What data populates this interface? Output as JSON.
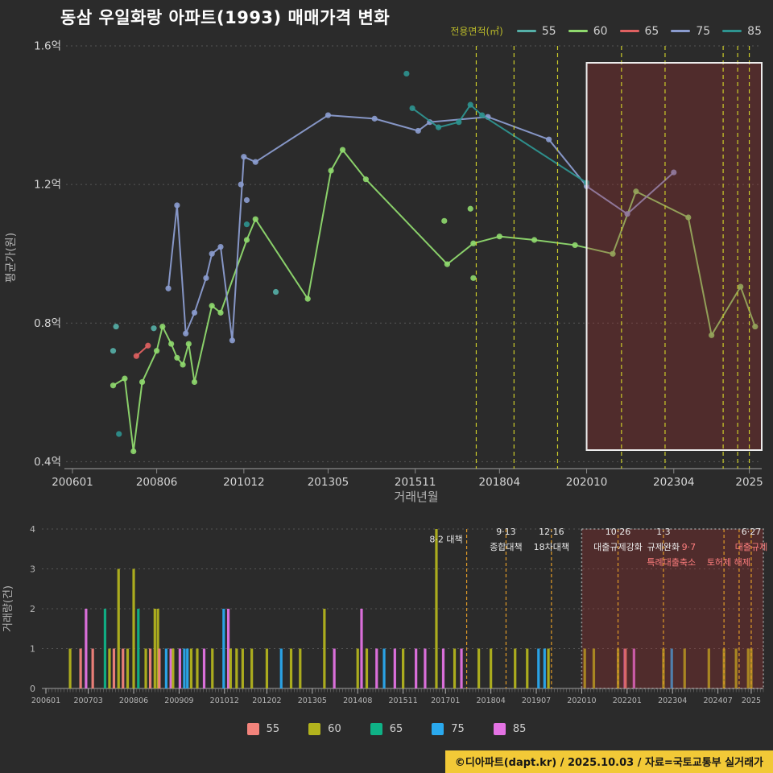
{
  "title": "동삼 우일화랑 아파트(1993) 매매가격 변화",
  "footer": "©디아파트(dapt.kr) / 2025.10.03 / 자료=국토교통부 실거래가",
  "top_legend": {
    "title": "전용면적(㎡)",
    "items": [
      {
        "label": "55",
        "color": "#55b0a8"
      },
      {
        "label": "60",
        "color": "#8fd96e"
      },
      {
        "label": "65",
        "color": "#e06161"
      },
      {
        "label": "75",
        "color": "#8b9ccf"
      },
      {
        "label": "85",
        "color": "#2e9490"
      }
    ]
  },
  "bottom_legend": {
    "items": [
      {
        "label": "55",
        "color": "#f2837b"
      },
      {
        "label": "60",
        "color": "#b2b31d"
      },
      {
        "label": "65",
        "color": "#0fb286"
      },
      {
        "label": "75",
        "color": "#2aa9ee"
      },
      {
        "label": "85",
        "color": "#e473e4"
      }
    ]
  },
  "chart_data": [
    {
      "name": "price",
      "type": "line",
      "xlabel": "거래년월",
      "ylabel": "평균가(원)",
      "x_unit": "months-since-2006-01",
      "xlim_months": [
        0,
        237
      ],
      "ylim": [
        0.38,
        1.6
      ],
      "yticks": [
        {
          "v": 0.4,
          "label": "0.4억"
        },
        {
          "v": 0.8,
          "label": "0.8억"
        },
        {
          "v": 1.2,
          "label": "1.2억"
        },
        {
          "v": 1.6,
          "label": "1.6억"
        }
      ],
      "xticks": [
        {
          "date": "2006-01",
          "label": "200601"
        },
        {
          "date": "2008-06",
          "label": "200806"
        },
        {
          "date": "2010-12",
          "label": "201012"
        },
        {
          "date": "2013-05",
          "label": "201305"
        },
        {
          "date": "2015-11",
          "label": "201511"
        },
        {
          "date": "2018-04",
          "label": "201804"
        },
        {
          "date": "2020-10",
          "label": "202010"
        },
        {
          "date": "2023-04",
          "label": "202304"
        },
        {
          "date": "2025-06",
          "label": "2025"
        }
      ],
      "series": [
        {
          "name": "55",
          "color": "#55b0a8",
          "points": [],
          "scatter": [
            [
              "2007-03",
              0.72
            ],
            [
              "2007-04",
              0.79
            ],
            [
              "2008-05",
              0.785
            ],
            [
              "2011-11",
              0.89
            ]
          ]
        },
        {
          "name": "60",
          "color": "#8fd96e",
          "points": [
            [
              "2007-03",
              0.62
            ],
            [
              "2007-07",
              0.64
            ],
            [
              "2007-10",
              0.43
            ],
            [
              "2008-01",
              0.63
            ],
            [
              "2008-06",
              0.72
            ],
            [
              "2008-08",
              0.79
            ],
            [
              "2008-11",
              0.74
            ],
            [
              "2009-01",
              0.7
            ],
            [
              "2009-03",
              0.68
            ],
            [
              "2009-05",
              0.74
            ],
            [
              "2009-07",
              0.63
            ],
            [
              "2010-01",
              0.85
            ],
            [
              "2010-04",
              0.83
            ],
            [
              "2011-01",
              1.04
            ],
            [
              "2011-04",
              1.1
            ],
            [
              "2012-10",
              0.87
            ],
            [
              "2013-06",
              1.24
            ],
            [
              "2013-10",
              1.3
            ],
            [
              "2014-06",
              1.215
            ],
            [
              "2016-10",
              0.97
            ],
            [
              "2017-07",
              1.03
            ],
            [
              "2018-04",
              1.05
            ],
            [
              "2019-04",
              1.04
            ],
            [
              "2020-06",
              1.025
            ],
            [
              "2021-07",
              1.0
            ],
            [
              "2022-03",
              1.18
            ],
            [
              "2023-09",
              1.105
            ],
            [
              "2024-05",
              0.765
            ],
            [
              "2025-03",
              0.905
            ],
            [
              "2025-08",
              0.79
            ]
          ],
          "scatter": [
            [
              "2016-09",
              1.095
            ],
            [
              "2017-06",
              1.13
            ],
            [
              "2017-07",
              0.93
            ]
          ]
        },
        {
          "name": "65",
          "color": "#e06161",
          "points": [
            [
              "2007-11",
              0.705
            ],
            [
              "2008-03",
              0.735
            ]
          ],
          "scatter": []
        },
        {
          "name": "75",
          "color": "#8b9ccf",
          "points": [
            [
              "2008-10",
              0.9
            ],
            [
              "2009-01",
              1.14
            ],
            [
              "2009-04",
              0.77
            ],
            [
              "2009-07",
              0.83
            ],
            [
              "2009-11",
              0.93
            ],
            [
              "2010-01",
              1.0
            ],
            [
              "2010-04",
              1.02
            ],
            [
              "2010-08",
              0.75
            ],
            [
              "2010-12",
              1.28
            ],
            [
              "2011-04",
              1.265
            ],
            [
              "2013-05",
              1.4
            ],
            [
              "2014-09",
              1.39
            ],
            [
              "2015-12",
              1.355
            ],
            [
              "2016-04",
              1.38
            ],
            [
              "2017-12",
              1.395
            ],
            [
              "2019-09",
              1.33
            ],
            [
              "2020-10",
              1.195
            ],
            [
              "2021-12",
              1.115
            ],
            [
              "2023-04",
              1.235
            ]
          ],
          "scatter": [
            [
              "2010-11",
              1.2
            ],
            [
              "2011-01",
              1.155
            ]
          ]
        },
        {
          "name": "85",
          "color": "#2e9490",
          "points": [
            [
              "2015-10",
              1.42
            ],
            [
              "2016-07",
              1.365
            ],
            [
              "2017-02",
              1.38
            ],
            [
              "2017-06",
              1.43
            ],
            [
              "2017-10",
              1.4
            ],
            [
              "2020-10",
              1.205
            ]
          ],
          "scatter": [
            [
              "2007-05",
              0.48
            ],
            [
              "2015-08",
              1.52
            ],
            [
              "2011-01",
              1.085
            ]
          ]
        }
      ],
      "event_dates": [
        "2017-08",
        "2018-09",
        "2019-12",
        "2021-10",
        "2023-01",
        "2024-09",
        "2025-02",
        "2025-06"
      ],
      "highlight_from": "2020-10"
    },
    {
      "name": "volume",
      "type": "bar",
      "ylabel": "거래량(건)",
      "ylim": [
        0,
        4
      ],
      "yticks": [
        0,
        1,
        2,
        3,
        4
      ],
      "xticks": [
        {
          "date": "2006-01",
          "label": "200601"
        },
        {
          "date": "2007-03",
          "label": "200703"
        },
        {
          "date": "2008-06",
          "label": "200806"
        },
        {
          "date": "2009-09",
          "label": "200909"
        },
        {
          "date": "2010-12",
          "label": "201012"
        },
        {
          "date": "2012-02",
          "label": "201202"
        },
        {
          "date": "2013-05",
          "label": "201305"
        },
        {
          "date": "2014-08",
          "label": "201408"
        },
        {
          "date": "2015-11",
          "label": "201511"
        },
        {
          "date": "2017-01",
          "label": "201701"
        },
        {
          "date": "2018-04",
          "label": "201804"
        },
        {
          "date": "2019-07",
          "label": "201907"
        },
        {
          "date": "2020-10",
          "label": "202010"
        },
        {
          "date": "2022-01",
          "label": "202201"
        },
        {
          "date": "2023-04",
          "label": "202304"
        },
        {
          "date": "2024-07",
          "label": "202407"
        },
        {
          "date": "2025-06",
          "label": "2025"
        }
      ],
      "bars": [
        [
          "2006-09",
          "60",
          1
        ],
        [
          "2007-01",
          "55",
          1
        ],
        [
          "2007-02",
          "85",
          2
        ],
        [
          "2007-05",
          "55",
          1
        ],
        [
          "2007-08",
          "65",
          2
        ],
        [
          "2007-10",
          "60",
          1
        ],
        [
          "2007-12",
          "55",
          1
        ],
        [
          "2008-01",
          "60",
          3
        ],
        [
          "2008-03",
          "55",
          1
        ],
        [
          "2008-04",
          "60",
          1
        ],
        [
          "2008-06",
          "60",
          3
        ],
        [
          "2008-07",
          "65",
          2
        ],
        [
          "2008-10",
          "60",
          1
        ],
        [
          "2008-12",
          "55",
          1
        ],
        [
          "2009-01",
          "60",
          2
        ],
        [
          "2009-02",
          "60",
          2
        ],
        [
          "2009-03",
          "55",
          1
        ],
        [
          "2009-05",
          "75",
          1
        ],
        [
          "2009-06",
          "85",
          1
        ],
        [
          "2009-07",
          "60",
          1
        ],
        [
          "2009-09",
          "85",
          1
        ],
        [
          "2009-11",
          "75",
          1
        ],
        [
          "2009-12",
          "75",
          1
        ],
        [
          "2010-01",
          "60",
          1
        ],
        [
          "2010-03",
          "60",
          1
        ],
        [
          "2010-05",
          "85",
          1
        ],
        [
          "2010-08",
          "60",
          1
        ],
        [
          "2010-12",
          "75",
          2
        ],
        [
          "2011-01",
          "85",
          2
        ],
        [
          "2011-02",
          "60",
          1
        ],
        [
          "2011-04",
          "60",
          1
        ],
        [
          "2011-06",
          "60",
          1
        ],
        [
          "2011-09",
          "60",
          1
        ],
        [
          "2012-02",
          "60",
          1
        ],
        [
          "2012-07",
          "75",
          1
        ],
        [
          "2012-10",
          "60",
          1
        ],
        [
          "2013-01",
          "60",
          1
        ],
        [
          "2013-09",
          "60",
          2
        ],
        [
          "2013-12",
          "85",
          1
        ],
        [
          "2014-09",
          "85",
          2
        ],
        [
          "2014-08",
          "60",
          1
        ],
        [
          "2014-11",
          "60",
          1
        ],
        [
          "2015-02",
          "85",
          1
        ],
        [
          "2015-05",
          "75",
          1
        ],
        [
          "2015-08",
          "85",
          1
        ],
        [
          "2015-11",
          "60",
          1
        ],
        [
          "2016-03",
          "85",
          1
        ],
        [
          "2016-06",
          "85",
          1
        ],
        [
          "2016-10",
          "60",
          4
        ],
        [
          "2016-12",
          "85",
          1
        ],
        [
          "2017-04",
          "60",
          1
        ],
        [
          "2017-06",
          "85",
          1
        ],
        [
          "2017-12",
          "60",
          1
        ],
        [
          "2018-04",
          "60",
          1
        ],
        [
          "2018-12",
          "60",
          1
        ],
        [
          "2019-04",
          "60",
          1
        ],
        [
          "2019-08",
          "75",
          1
        ],
        [
          "2019-10",
          "75",
          1
        ],
        [
          "2019-11",
          "60",
          1
        ],
        [
          "2020-11",
          "60",
          1
        ],
        [
          "2021-02",
          "60",
          1
        ],
        [
          "2021-10",
          "60",
          1
        ],
        [
          "2021-12",
          "85",
          1
        ],
        [
          "2022-01",
          "55",
          1
        ],
        [
          "2022-03",
          "85",
          1
        ],
        [
          "2023-01",
          "60",
          1
        ],
        [
          "2023-04",
          "75",
          1
        ],
        [
          "2023-08",
          "60",
          1
        ],
        [
          "2024-04",
          "60",
          1
        ],
        [
          "2024-09",
          "60",
          1
        ],
        [
          "2025-01",
          "60",
          1
        ],
        [
          "2025-05",
          "60",
          1
        ],
        [
          "2025-06",
          "60",
          1
        ]
      ],
      "events": [
        {
          "date": "2017-08",
          "rows": [
            {
              "text": "8·2 대책",
              "color": "#eaeaea"
            }
          ],
          "anchor": "end",
          "dx": -5,
          "row": 0.5
        },
        {
          "date": "2018-09",
          "rows": [
            {
              "text": "9·13",
              "color": "#eaeaea"
            },
            {
              "text": "종합대책",
              "color": "#eaeaea"
            }
          ],
          "anchor": "middle",
          "dx": 0,
          "row": 0
        },
        {
          "date": "2019-12",
          "rows": [
            {
              "text": "12·16",
              "color": "#eaeaea"
            },
            {
              "text": "18차대책",
              "color": "#eaeaea"
            }
          ],
          "anchor": "middle",
          "dx": 0,
          "row": 0
        },
        {
          "date": "2021-10",
          "rows": [
            {
              "text": "10·26",
              "color": "#eaeaea"
            },
            {
              "text": "대출규제강화",
              "color": "#eaeaea"
            }
          ],
          "anchor": "middle",
          "dx": 0,
          "row": 0
        },
        {
          "date": "2023-01",
          "rows": [
            {
              "text": "1·3",
              "color": "#eaeaea"
            },
            {
              "text": "규제완화",
              "color": "#eaeaea"
            }
          ],
          "anchor": "middle",
          "dx": 0,
          "row": 0
        },
        {
          "date": "2024-09",
          "rows": [
            {
              "text": "9·7",
              "color": "#ff7e7e"
            },
            {
              "text": "특례대출축소",
              "color": "#ff7e7e"
            }
          ],
          "anchor": "end",
          "dx": -35,
          "row": 1
        },
        {
          "date": "2025-02",
          "rows": [
            {
              "text": "토허제 해제",
              "color": "#ff7e7e"
            }
          ],
          "anchor": "end",
          "dx": 14,
          "row": 2
        },
        {
          "date": "2025-06",
          "rows": [
            {
              "text": "6·27",
              "color": "#eaeaea"
            },
            {
              "text": "대출규제",
              "color": "#ff7e7e"
            }
          ],
          "anchor": "middle",
          "dx": 0,
          "row": 0
        }
      ],
      "highlight_from": "2020-10"
    }
  ],
  "style": {
    "background": "#2b2b2b",
    "grid_color": "#565656",
    "axis_color": "#8a8a8a",
    "tick_text_color": "#d5d5d5",
    "axis_label_color": "#b5b5b5",
    "event_line_top": "#cbcb2a",
    "event_line_bottom": "#e09a28",
    "highlight_fill": "rgba(165,45,45,0.30)",
    "highlight_border_top": "#ededed",
    "highlight_border_bottom": "#9a9a9a"
  }
}
